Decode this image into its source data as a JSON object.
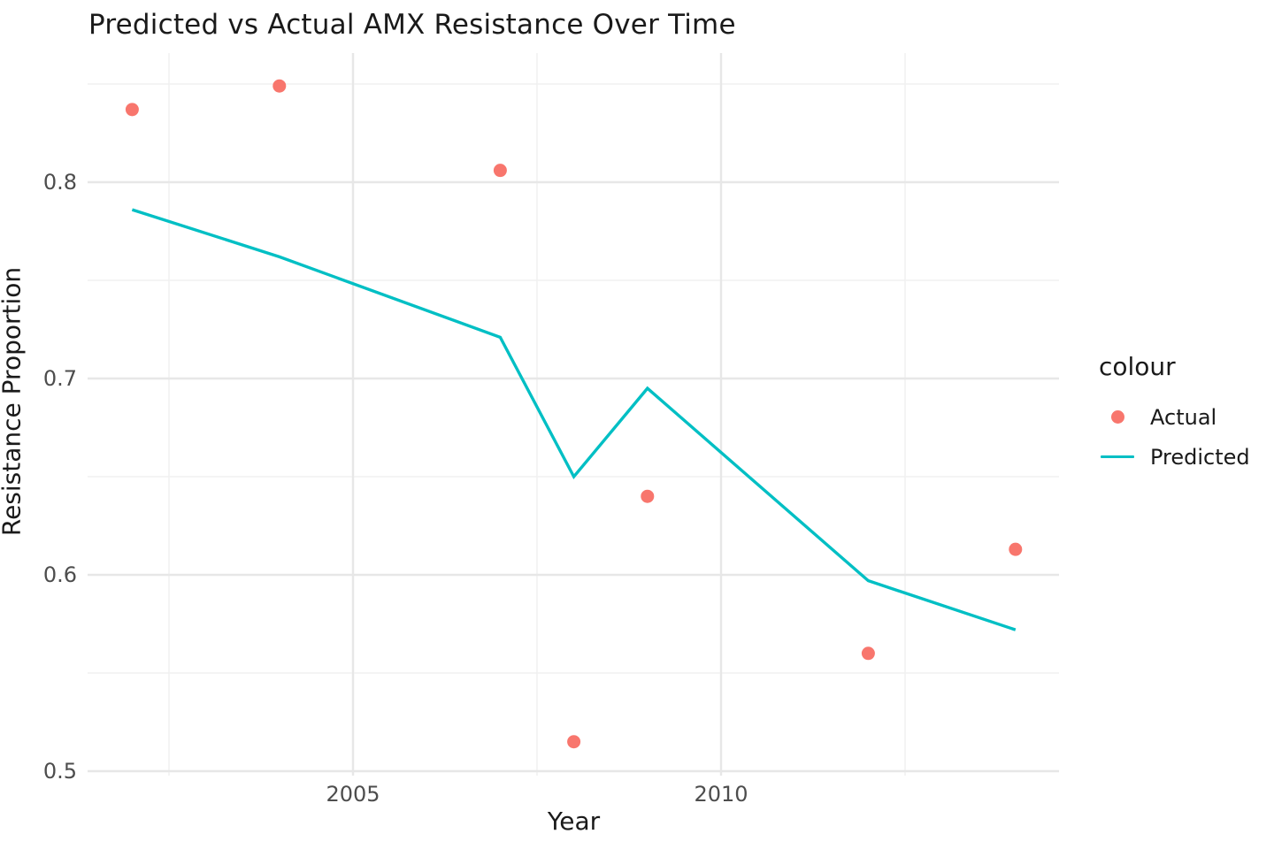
{
  "chart_data": {
    "type": "scatter",
    "title": "Predicted vs Actual AMX Resistance Over Time",
    "xlabel": "Year",
    "ylabel": "Resistance Proportion",
    "legend_title": "colour",
    "legend_position": "right",
    "grid": true,
    "background": "#ffffff",
    "major_grid_color": "#e7e7e7",
    "minor_grid_color": "#f1f1f1",
    "xlim": [
      2001.4,
      2014.6
    ],
    "ylim": [
      0.498,
      0.866
    ],
    "x_tick_values": [
      2005,
      2010
    ],
    "x_tick_labels": [
      "2005",
      "2010"
    ],
    "x_minor_ticks": [
      2002.5,
      2007.5,
      2012.5
    ],
    "y_tick_values": [
      0.5,
      0.6,
      0.7,
      0.8
    ],
    "y_tick_labels": [
      "0.5",
      "0.6",
      "0.7",
      "0.8"
    ],
    "y_minor_ticks": [
      0.55,
      0.65,
      0.75,
      0.85
    ],
    "x": [
      2002,
      2004,
      2007,
      2008,
      2009,
      2012,
      2014
    ],
    "series": [
      {
        "name": "Actual",
        "type": "scatter",
        "color": "#F8766D",
        "values": [
          0.837,
          0.849,
          0.806,
          0.515,
          0.64,
          0.56,
          0.613
        ]
      },
      {
        "name": "Predicted",
        "type": "line",
        "color": "#00BFC4",
        "values": [
          0.786,
          0.762,
          0.721,
          0.65,
          0.695,
          0.597,
          0.572
        ]
      }
    ]
  }
}
